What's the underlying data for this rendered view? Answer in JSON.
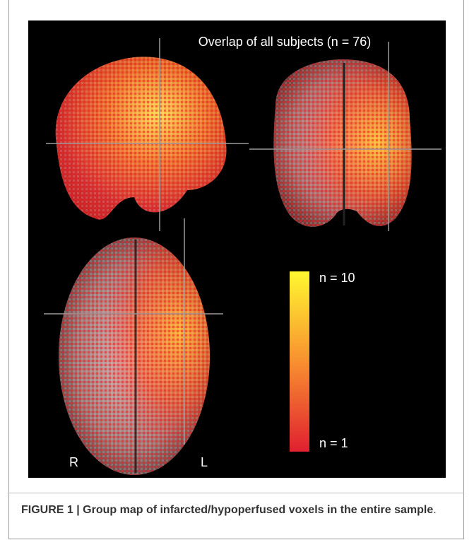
{
  "figure": {
    "title": "Overlap of all subjects (n = 76)",
    "colorbar": {
      "top_label": "n = 10",
      "bottom_label": "n = 1"
    },
    "orientation": {
      "left": "R",
      "right": "L"
    }
  },
  "caption": {
    "text": "FIGURE 1 | Group map of infarcted/hypoperfused voxels in the entire sample",
    "end": "."
  }
}
